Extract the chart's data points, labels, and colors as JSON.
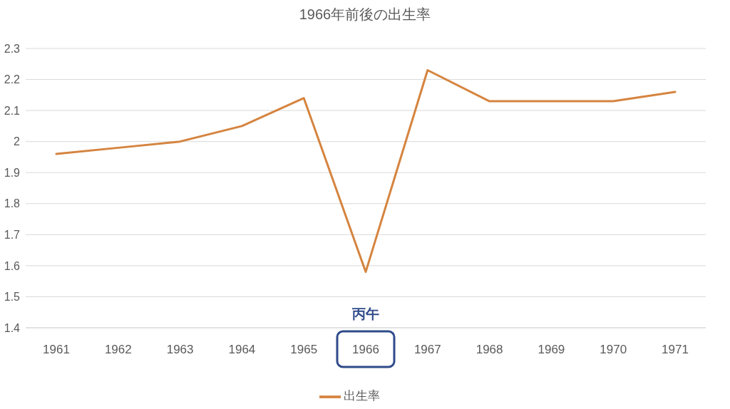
{
  "chart_data": {
    "type": "line",
    "title": "1966年前後の出生率",
    "categories": [
      "1961",
      "1962",
      "1963",
      "1964",
      "1965",
      "1966",
      "1967",
      "1968",
      "1969",
      "1970",
      "1971"
    ],
    "series": [
      {
        "name": "出生率",
        "color": "#d5843f",
        "values": [
          1.96,
          1.98,
          2.0,
          2.05,
          2.14,
          1.58,
          2.23,
          2.13,
          2.13,
          2.13,
          2.16
        ]
      }
    ],
    "ylim": [
      1.4,
      2.3
    ],
    "yticks": [
      1.4,
      1.5,
      1.6,
      1.7,
      1.8,
      1.9,
      2,
      2.1,
      2.2,
      2.3
    ],
    "grid": "y",
    "legend": "bottom",
    "marker": "none",
    "annotations": [
      "丙午"
    ]
  }
}
